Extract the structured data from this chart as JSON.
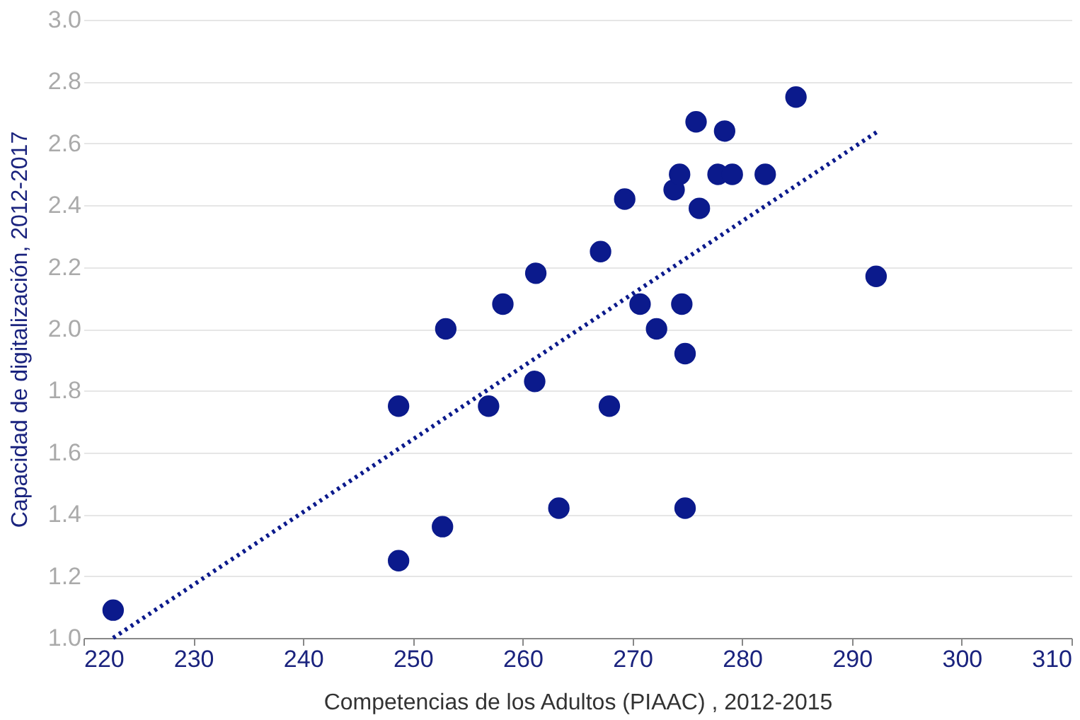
{
  "chart_data": {
    "type": "scatter",
    "xlabel": "Competencias de los Adultos (PIAAC) , 2012-2015",
    "ylabel": "Capacidad de digitalización, 2012-2017",
    "xlim": [
      220,
      310
    ],
    "xticks": [
      220,
      230,
      240,
      250,
      260,
      270,
      280,
      290,
      300,
      310
    ],
    "ylim": [
      1.0,
      3.0
    ],
    "yticks": [
      {
        "value": 1.0,
        "label": "1.0"
      },
      {
        "value": 1.2,
        "label": "1.2"
      },
      {
        "value": 1.4,
        "label": "1.4"
      },
      {
        "value": 1.6,
        "label": "1.6"
      },
      {
        "value": 1.8,
        "label": "1.8"
      },
      {
        "value": 2.0,
        "label": "2.0"
      },
      {
        "value": 2.2,
        "label": "2.2"
      },
      {
        "value": 2.4,
        "label": "2.4"
      },
      {
        "value": 2.6,
        "label": "2.6"
      },
      {
        "value": 2.8,
        "label": "2.8"
      },
      {
        "value": 3.0,
        "label": "3.0"
      }
    ],
    "grid": "y",
    "series": [
      {
        "type": "scatter",
        "color": "#0b1a8c",
        "marker": "circle",
        "x": [
          222.7,
          248.7,
          248.7,
          252.7,
          253.0,
          258.2,
          261.2,
          256.9,
          261.1,
          263.3,
          267.1,
          267.9,
          269.3,
          270.7,
          272.2,
          273.8,
          274.3,
          274.5,
          274.8,
          274.8,
          275.8,
          276.1,
          277.8,
          278.4,
          279.1,
          282.1,
          284.9,
          292.2
        ],
        "values": [
          1.09,
          1.75,
          1.25,
          1.36,
          2.0,
          2.08,
          2.18,
          1.75,
          1.83,
          1.42,
          2.25,
          1.75,
          2.42,
          2.08,
          2.0,
          2.45,
          2.5,
          2.08,
          1.92,
          1.42,
          2.67,
          2.39,
          2.5,
          2.64,
          2.5,
          2.5,
          2.75,
          2.17
        ]
      },
      {
        "type": "line",
        "color": "#0b1a8c",
        "line_style": "dotted",
        "x": [
          222.7,
          292.4
        ],
        "values": [
          1.0,
          2.64
        ]
      }
    ]
  }
}
